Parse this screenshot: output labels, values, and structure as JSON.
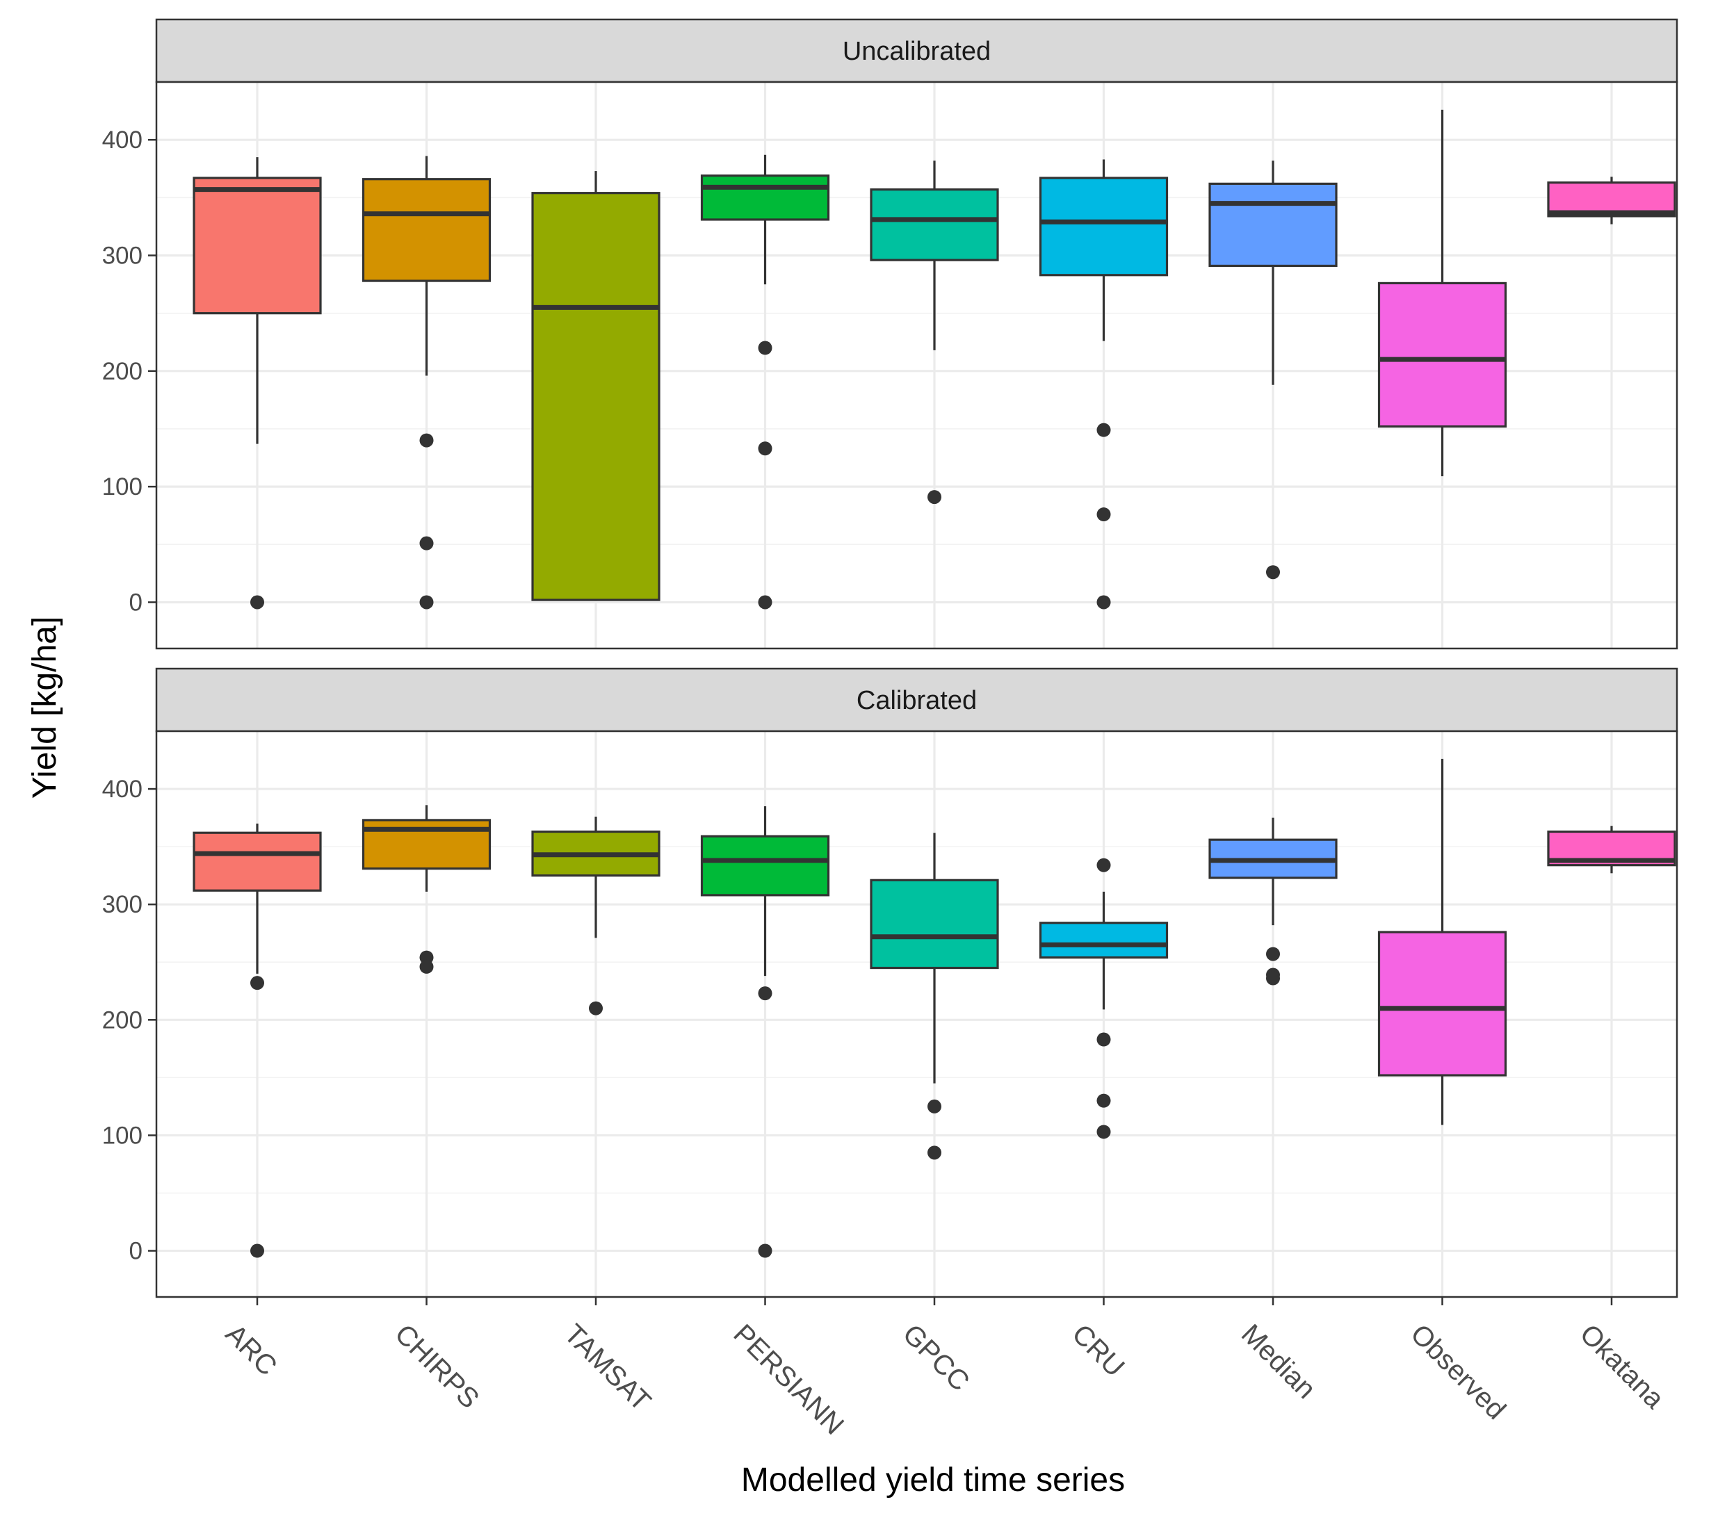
{
  "chart_data": {
    "type": "boxplot",
    "xlabel": "Modelled yield time series",
    "ylabel": "Yield [kg/ha]",
    "ylim": [
      -40,
      450
    ],
    "yticks": [
      0,
      100,
      200,
      300,
      400
    ],
    "grid": true,
    "categories": [
      "ARC",
      "CHIRPS",
      "TAMSAT",
      "PERSIANN",
      "GPCC",
      "CRU",
      "Median",
      "Observed",
      "Okatana"
    ],
    "colors": {
      "ARC": "#F8766D",
      "CHIRPS": "#D39200",
      "TAMSAT": "#93AA00",
      "PERSIANN": "#00BA38",
      "GPCC": "#00C19F",
      "CRU": "#00B9E3",
      "Median": "#619CFF",
      "Observed": "#F564E3",
      "Okatana": "#FF61C3"
    },
    "panels": [
      {
        "title": "Uncalibrated",
        "boxes": [
          {
            "category": "ARC",
            "lower_whisker": 137,
            "q1": 250,
            "median": 357,
            "q3": 367,
            "upper_whisker": 385,
            "outliers": [
              0
            ]
          },
          {
            "category": "CHIRPS",
            "lower_whisker": 196,
            "q1": 278,
            "median": 336,
            "q3": 366,
            "upper_whisker": 386,
            "outliers": [
              140,
              51,
              0
            ]
          },
          {
            "category": "TAMSAT",
            "lower_whisker": 2,
            "q1": 2,
            "median": 255,
            "q3": 354,
            "upper_whisker": 373,
            "outliers": []
          },
          {
            "category": "PERSIANN",
            "lower_whisker": 275,
            "q1": 331,
            "median": 359,
            "q3": 369,
            "upper_whisker": 387,
            "outliers": [
              220,
              133,
              0
            ]
          },
          {
            "category": "GPCC",
            "lower_whisker": 218,
            "q1": 296,
            "median": 331,
            "q3": 357,
            "upper_whisker": 382,
            "outliers": [
              91
            ]
          },
          {
            "category": "CRU",
            "lower_whisker": 226,
            "q1": 283,
            "median": 329,
            "q3": 367,
            "upper_whisker": 383,
            "outliers": [
              149,
              76,
              0
            ]
          },
          {
            "category": "Median",
            "lower_whisker": 188,
            "q1": 291,
            "median": 345,
            "q3": 362,
            "upper_whisker": 382,
            "outliers": [
              26
            ]
          },
          {
            "category": "Observed",
            "lower_whisker": 109,
            "q1": 152,
            "median": 210,
            "q3": 276,
            "upper_whisker": 426,
            "outliers": []
          },
          {
            "category": "Okatana",
            "lower_whisker": 327,
            "q1": 334,
            "median": 337,
            "q3": 363,
            "upper_whisker": 368,
            "outliers": []
          }
        ]
      },
      {
        "title": "Calibrated",
        "boxes": [
          {
            "category": "ARC",
            "lower_whisker": 240,
            "q1": 312,
            "median": 344,
            "q3": 362,
            "upper_whisker": 370,
            "outliers": [
              232,
              0
            ]
          },
          {
            "category": "CHIRPS",
            "lower_whisker": 311,
            "q1": 331,
            "median": 365,
            "q3": 373,
            "upper_whisker": 386,
            "outliers": [
              254,
              246
            ]
          },
          {
            "category": "TAMSAT",
            "lower_whisker": 271,
            "q1": 325,
            "median": 343,
            "q3": 363,
            "upper_whisker": 376,
            "outliers": [
              210
            ]
          },
          {
            "category": "PERSIANN",
            "lower_whisker": 238,
            "q1": 308,
            "median": 338,
            "q3": 359,
            "upper_whisker": 385,
            "outliers": [
              223,
              0
            ]
          },
          {
            "category": "GPCC",
            "lower_whisker": 145,
            "q1": 245,
            "median": 272,
            "q3": 321,
            "upper_whisker": 362,
            "outliers": [
              125,
              85
            ]
          },
          {
            "category": "CRU",
            "lower_whisker": 209,
            "q1": 254,
            "median": 265,
            "q3": 284,
            "upper_whisker": 311,
            "outliers": [
              334,
              183,
              130,
              103
            ]
          },
          {
            "category": "Median",
            "lower_whisker": 282,
            "q1": 323,
            "median": 338,
            "q3": 356,
            "upper_whisker": 375,
            "outliers": [
              257,
              239,
              236
            ]
          },
          {
            "category": "Observed",
            "lower_whisker": 109,
            "q1": 152,
            "median": 210,
            "q3": 276,
            "upper_whisker": 426,
            "outliers": []
          },
          {
            "category": "Okatana",
            "lower_whisker": 327,
            "q1": 334,
            "median": 338,
            "q3": 363,
            "upper_whisker": 368,
            "outliers": []
          }
        ]
      }
    ]
  }
}
